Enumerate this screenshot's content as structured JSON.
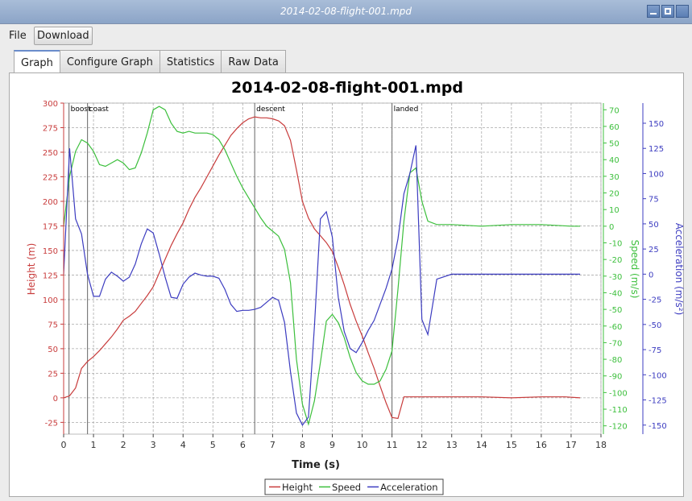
{
  "window": {
    "title": "2014-02-08-flight-001.mpd"
  },
  "menu": {
    "file": "File",
    "download": "Download"
  },
  "tabs": [
    {
      "label": "Graph",
      "active": true
    },
    {
      "label": "Configure Graph",
      "active": false
    },
    {
      "label": "Statistics",
      "active": false
    },
    {
      "label": "Raw Data",
      "active": false
    }
  ],
  "chart_data": {
    "type": "line",
    "title": "2014-02-08-flight-001.mpd",
    "xlabel": "Time (s)",
    "xlim": [
      0,
      18
    ],
    "x_ticks": [
      "0",
      "1",
      "2",
      "3",
      "4",
      "5",
      "6",
      "7",
      "8",
      "9",
      "10",
      "11",
      "12",
      "13",
      "14",
      "15",
      "16",
      "17",
      "18"
    ],
    "grid": true,
    "legend_position": "bottom",
    "axes": [
      {
        "id": "height",
        "label": "Height (m)",
        "side": "left",
        "lim": [
          -37,
          300
        ],
        "ticks": [
          300,
          275,
          250,
          225,
          200,
          175,
          150,
          125,
          100,
          75,
          50,
          25,
          0,
          -25
        ],
        "color": "#c83c3c"
      },
      {
        "id": "speed",
        "label": "Speed (m/s)",
        "side": "right",
        "lim": [
          -125,
          74
        ],
        "ticks": [
          70,
          60,
          50,
          40,
          30,
          20,
          10,
          0,
          -10,
          -20,
          -30,
          -40,
          -50,
          -60,
          -70,
          -80,
          -90,
          -100,
          -110,
          -120
        ],
        "color": "#3cbf3c"
      },
      {
        "id": "accel",
        "label": "Acceleration (m/s²)",
        "side": "right",
        "lim": [
          -159,
          170
        ],
        "ticks": [
          150,
          125,
          100,
          75,
          50,
          25,
          0,
          -25,
          -50,
          -75,
          -100,
          -125,
          -150
        ],
        "color": "#3c3cc0"
      }
    ],
    "events": [
      {
        "t": 0.18,
        "label": "boost"
      },
      {
        "t": 0.8,
        "label": "coast"
      },
      {
        "t": 6.4,
        "label": "descent"
      },
      {
        "t": 11.0,
        "label": "landed"
      }
    ],
    "series": [
      {
        "name": "Height",
        "axis": "height",
        "color": "#c83c3c",
        "x": [
          0,
          0.2,
          0.4,
          0.6,
          0.8,
          1.0,
          1.2,
          1.4,
          1.6,
          1.8,
          2.0,
          2.2,
          2.4,
          2.6,
          2.8,
          3.0,
          3.2,
          3.4,
          3.6,
          3.8,
          4.0,
          4.2,
          4.4,
          4.6,
          4.8,
          5.0,
          5.2,
          5.4,
          5.6,
          5.8,
          6.0,
          6.2,
          6.4,
          6.6,
          6.8,
          7.0,
          7.2,
          7.4,
          7.6,
          7.8,
          8.0,
          8.2,
          8.4,
          8.6,
          8.8,
          9.0,
          9.2,
          9.4,
          9.6,
          9.8,
          10.0,
          10.2,
          10.4,
          10.6,
          10.8,
          11.0,
          11.2,
          11.4,
          11.6,
          12.0,
          13.0,
          14.0,
          15.0,
          16.0,
          16.8,
          17.3
        ],
        "values": [
          0,
          2,
          10,
          30,
          37,
          42,
          48,
          55,
          62,
          70,
          79,
          83,
          88,
          96,
          104,
          113,
          127,
          141,
          155,
          167,
          178,
          192,
          204,
          214,
          225,
          236,
          247,
          257,
          267,
          274,
          280,
          284,
          286,
          285,
          285,
          284,
          282,
          277,
          262,
          232,
          200,
          183,
          172,
          165,
          158,
          149,
          133,
          115,
          95,
          78,
          63,
          46,
          30,
          12,
          -5,
          -20,
          -21,
          1,
          1,
          1,
          1,
          1,
          0,
          1,
          1,
          0
        ]
      },
      {
        "name": "Speed",
        "axis": "speed",
        "color": "#3cbf3c",
        "x": [
          0,
          0.2,
          0.4,
          0.6,
          0.8,
          1.0,
          1.2,
          1.4,
          1.6,
          1.8,
          2.0,
          2.2,
          2.4,
          2.6,
          2.8,
          3.0,
          3.2,
          3.4,
          3.6,
          3.8,
          4.0,
          4.2,
          4.4,
          4.6,
          4.8,
          5.0,
          5.2,
          5.4,
          5.6,
          5.8,
          6.0,
          6.2,
          6.4,
          6.6,
          6.8,
          7.0,
          7.2,
          7.4,
          7.6,
          7.8,
          8.0,
          8.2,
          8.4,
          8.6,
          8.8,
          9.0,
          9.2,
          9.4,
          9.6,
          9.8,
          10.0,
          10.2,
          10.4,
          10.6,
          10.8,
          11.0,
          11.2,
          11.4,
          11.6,
          11.8,
          12.0,
          12.2,
          12.5,
          13,
          14,
          15,
          16,
          17,
          17.3
        ],
        "values": [
          0,
          30,
          45,
          52,
          50,
          45,
          37,
          36,
          38,
          40,
          38,
          34,
          35,
          44,
          56,
          70,
          72,
          70,
          62,
          57,
          56,
          57,
          56,
          56,
          56,
          55,
          52,
          46,
          38,
          30,
          23,
          17,
          11,
          5,
          0,
          -3,
          -6,
          -14,
          -34,
          -80,
          -107,
          -119,
          -105,
          -82,
          -57,
          -53,
          -58,
          -67,
          -79,
          -88,
          -93,
          -95,
          -95,
          -93,
          -86,
          -75,
          -38,
          3,
          32,
          35,
          15,
          3,
          1,
          1,
          0,
          1,
          1,
          0,
          0
        ]
      },
      {
        "name": "Acceleration",
        "axis": "accel",
        "color": "#3c3cc0",
        "x": [
          0,
          0.2,
          0.4,
          0.6,
          0.8,
          1.0,
          1.2,
          1.4,
          1.6,
          1.8,
          2.0,
          2.2,
          2.4,
          2.6,
          2.8,
          3.0,
          3.2,
          3.4,
          3.6,
          3.8,
          4.0,
          4.2,
          4.4,
          4.6,
          4.8,
          5.0,
          5.2,
          5.4,
          5.6,
          5.8,
          6.0,
          6.2,
          6.4,
          6.6,
          6.8,
          7.0,
          7.2,
          7.4,
          7.6,
          7.8,
          8.0,
          8.2,
          8.4,
          8.6,
          8.8,
          9.0,
          9.2,
          9.4,
          9.6,
          9.8,
          10.0,
          10.2,
          10.4,
          10.6,
          10.8,
          11.0,
          11.2,
          11.4,
          11.6,
          11.8,
          12.0,
          12.2,
          12.5,
          13,
          14,
          15,
          16,
          17,
          17.3
        ],
        "values": [
          0,
          125,
          55,
          40,
          0,
          -22,
          -22,
          -5,
          2,
          -2,
          -7,
          -3,
          10,
          30,
          45,
          41,
          20,
          -3,
          -23,
          -24,
          -10,
          -3,
          1,
          -1,
          -2,
          -2,
          -4,
          -15,
          -30,
          -37,
          -36,
          -36,
          -35,
          -33,
          -28,
          -23,
          -26,
          -48,
          -97,
          -138,
          -150,
          -142,
          -52,
          55,
          62,
          37,
          -23,
          -57,
          -74,
          -78,
          -68,
          -56,
          -46,
          -30,
          -14,
          5,
          35,
          80,
          100,
          128,
          -45,
          -60,
          -5,
          0,
          0,
          0,
          0,
          0,
          0
        ]
      }
    ]
  }
}
